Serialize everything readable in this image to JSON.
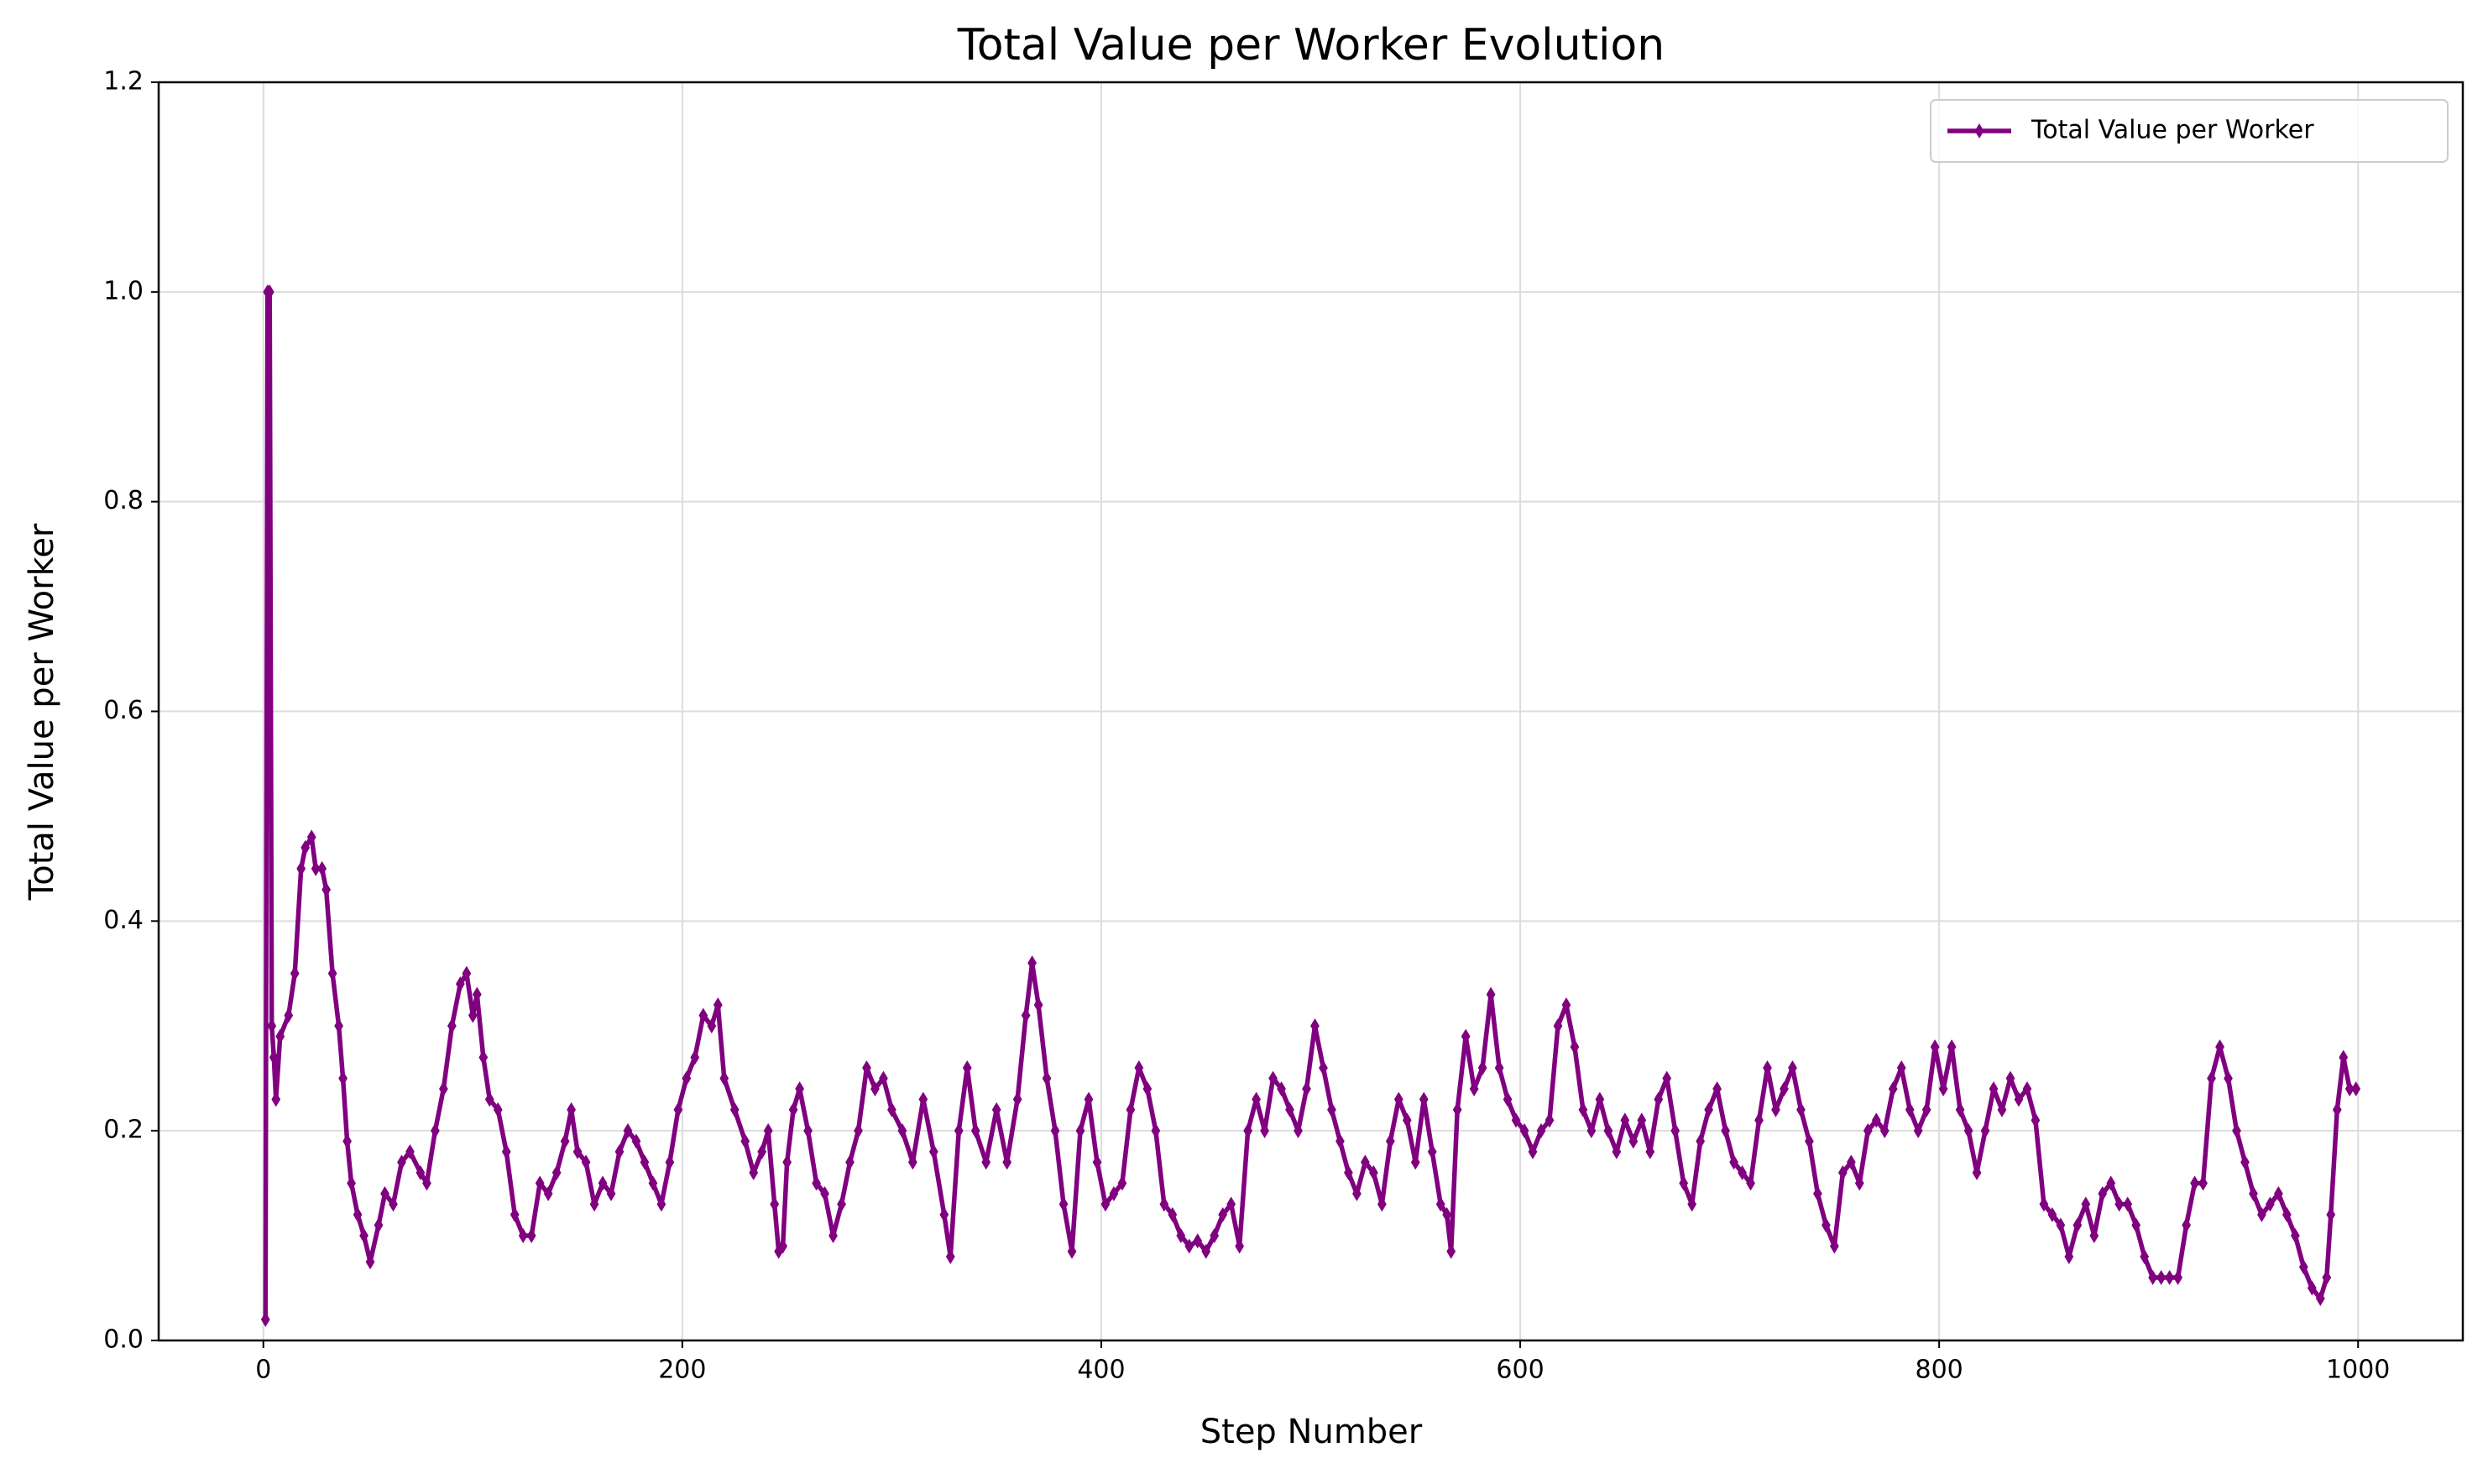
{
  "chart_data": {
    "type": "line",
    "title": "Total Value per Worker Evolution",
    "x_label": "Step Number",
    "y_label": "Total Value per Worker",
    "xlim": [
      -50,
      1050
    ],
    "xticks": [
      0,
      200,
      400,
      600,
      800,
      1000
    ],
    "ylim": [
      0,
      1.2
    ],
    "yticks": [
      {
        "value": 0,
        "label": "0.0"
      },
      0.2,
      0.4,
      0.6,
      0.8,
      {
        "value": 1,
        "label": "1.0"
      },
      1.2
    ],
    "grid": true,
    "legend": "upper right",
    "x": [
      1,
      2,
      3,
      4,
      5,
      6,
      8,
      12,
      15,
      18,
      20,
      23,
      25,
      28,
      30,
      33,
      36,
      38,
      40,
      42,
      45,
      48,
      51,
      55,
      58,
      62,
      66,
      70,
      75,
      78,
      82,
      86,
      90,
      94,
      97,
      100,
      102,
      105,
      108,
      112,
      116,
      120,
      124,
      128,
      132,
      136,
      140,
      144,
      147,
      150,
      154,
      158,
      162,
      166,
      170,
      174,
      178,
      182,
      186,
      190,
      194,
      198,
      202,
      206,
      210,
      214,
      217,
      220,
      225,
      230,
      234,
      238,
      241,
      244,
      246,
      248,
      250,
      253,
      256,
      260,
      264,
      268,
      272,
      276,
      280,
      284,
      288,
      292,
      296,
      300,
      305,
      310,
      315,
      320,
      325,
      328,
      332,
      336,
      340,
      345,
      350,
      355,
      360,
      364,
      367,
      370,
      374,
      378,
      382,
      386,
      390,
      394,
      398,
      402,
      406,
      410,
      414,
      418,
      422,
      426,
      430,
      434,
      438,
      442,
      446,
      450,
      454,
      458,
      462,
      466,
      470,
      474,
      478,
      482,
      486,
      490,
      494,
      498,
      502,
      506,
      510,
      514,
      518,
      522,
      526,
      530,
      534,
      538,
      542,
      546,
      550,
      554,
      558,
      562,
      565,
      567,
      570,
      574,
      578,
      582,
      586,
      590,
      594,
      598,
      602,
      606,
      610,
      614,
      618,
      622,
      626,
      630,
      634,
      638,
      642,
      646,
      650,
      654,
      658,
      662,
      666,
      670,
      674,
      678,
      682,
      686,
      690,
      694,
      698,
      702,
      706,
      710,
      714,
      718,
      722,
      726,
      730,
      734,
      738,
      742,
      746,
      750,
      754,
      758,
      762,
      766,
      770,
      774,
      778,
      782,
      786,
      790,
      794,
      798,
      802,
      806,
      810,
      814,
      818,
      822,
      826,
      830,
      834,
      838,
      842,
      846,
      850,
      854,
      858,
      862,
      866,
      870,
      874,
      878,
      882,
      886,
      890,
      894,
      898,
      902,
      906,
      910,
      914,
      918,
      922,
      926,
      930,
      934,
      938,
      942,
      946,
      950,
      954,
      958,
      962,
      966,
      970,
      974,
      978,
      982,
      985,
      987,
      990,
      993,
      996,
      999
    ],
    "series": [
      {
        "name": "Total Value per Worker",
        "color": "#800080",
        "values": [
          0.02,
          1.0,
          1.0,
          0.3,
          0.27,
          0.23,
          0.29,
          0.31,
          0.35,
          0.45,
          0.47,
          0.48,
          0.45,
          0.45,
          0.43,
          0.35,
          0.3,
          0.25,
          0.19,
          0.15,
          0.12,
          0.1,
          0.075,
          0.11,
          0.14,
          0.13,
          0.17,
          0.18,
          0.16,
          0.15,
          0.2,
          0.24,
          0.3,
          0.34,
          0.35,
          0.31,
          0.33,
          0.27,
          0.23,
          0.22,
          0.18,
          0.12,
          0.1,
          0.1,
          0.15,
          0.14,
          0.16,
          0.19,
          0.22,
          0.18,
          0.17,
          0.13,
          0.15,
          0.14,
          0.18,
          0.2,
          0.19,
          0.17,
          0.15,
          0.13,
          0.17,
          0.22,
          0.25,
          0.27,
          0.31,
          0.3,
          0.32,
          0.25,
          0.22,
          0.19,
          0.16,
          0.18,
          0.2,
          0.13,
          0.085,
          0.09,
          0.17,
          0.22,
          0.24,
          0.2,
          0.15,
          0.14,
          0.1,
          0.13,
          0.17,
          0.2,
          0.26,
          0.24,
          0.25,
          0.22,
          0.2,
          0.17,
          0.23,
          0.18,
          0.12,
          0.08,
          0.2,
          0.26,
          0.2,
          0.17,
          0.22,
          0.17,
          0.23,
          0.31,
          0.36,
          0.32,
          0.25,
          0.2,
          0.13,
          0.085,
          0.2,
          0.23,
          0.17,
          0.13,
          0.14,
          0.15,
          0.22,
          0.26,
          0.24,
          0.2,
          0.13,
          0.12,
          0.1,
          0.09,
          0.095,
          0.085,
          0.1,
          0.12,
          0.13,
          0.09,
          0.2,
          0.23,
          0.2,
          0.25,
          0.24,
          0.22,
          0.2,
          0.24,
          0.3,
          0.26,
          0.22,
          0.19,
          0.16,
          0.14,
          0.17,
          0.16,
          0.13,
          0.19,
          0.23,
          0.21,
          0.17,
          0.23,
          0.18,
          0.13,
          0.12,
          0.085,
          0.22,
          0.29,
          0.24,
          0.26,
          0.33,
          0.26,
          0.23,
          0.21,
          0.2,
          0.18,
          0.2,
          0.21,
          0.3,
          0.32,
          0.28,
          0.22,
          0.2,
          0.23,
          0.2,
          0.18,
          0.21,
          0.19,
          0.21,
          0.18,
          0.23,
          0.25,
          0.2,
          0.15,
          0.13,
          0.19,
          0.22,
          0.24,
          0.2,
          0.17,
          0.16,
          0.15,
          0.21,
          0.26,
          0.22,
          0.24,
          0.26,
          0.22,
          0.19,
          0.14,
          0.11,
          0.09,
          0.16,
          0.17,
          0.15,
          0.2,
          0.21,
          0.2,
          0.24,
          0.26,
          0.22,
          0.2,
          0.22,
          0.28,
          0.24,
          0.28,
          0.22,
          0.2,
          0.16,
          0.2,
          0.24,
          0.22,
          0.25,
          0.23,
          0.24,
          0.21,
          0.13,
          0.12,
          0.11,
          0.08,
          0.11,
          0.13,
          0.1,
          0.14,
          0.15,
          0.13,
          0.13,
          0.11,
          0.08,
          0.06,
          0.06,
          0.06,
          0.06,
          0.11,
          0.15,
          0.15,
          0.25,
          0.28,
          0.25,
          0.2,
          0.17,
          0.14,
          0.12,
          0.13,
          0.14,
          0.12,
          0.1,
          0.07,
          0.05,
          0.04,
          0.06,
          0.12,
          0.22,
          0.27,
          0.24,
          0.24
        ]
      }
    ]
  }
}
